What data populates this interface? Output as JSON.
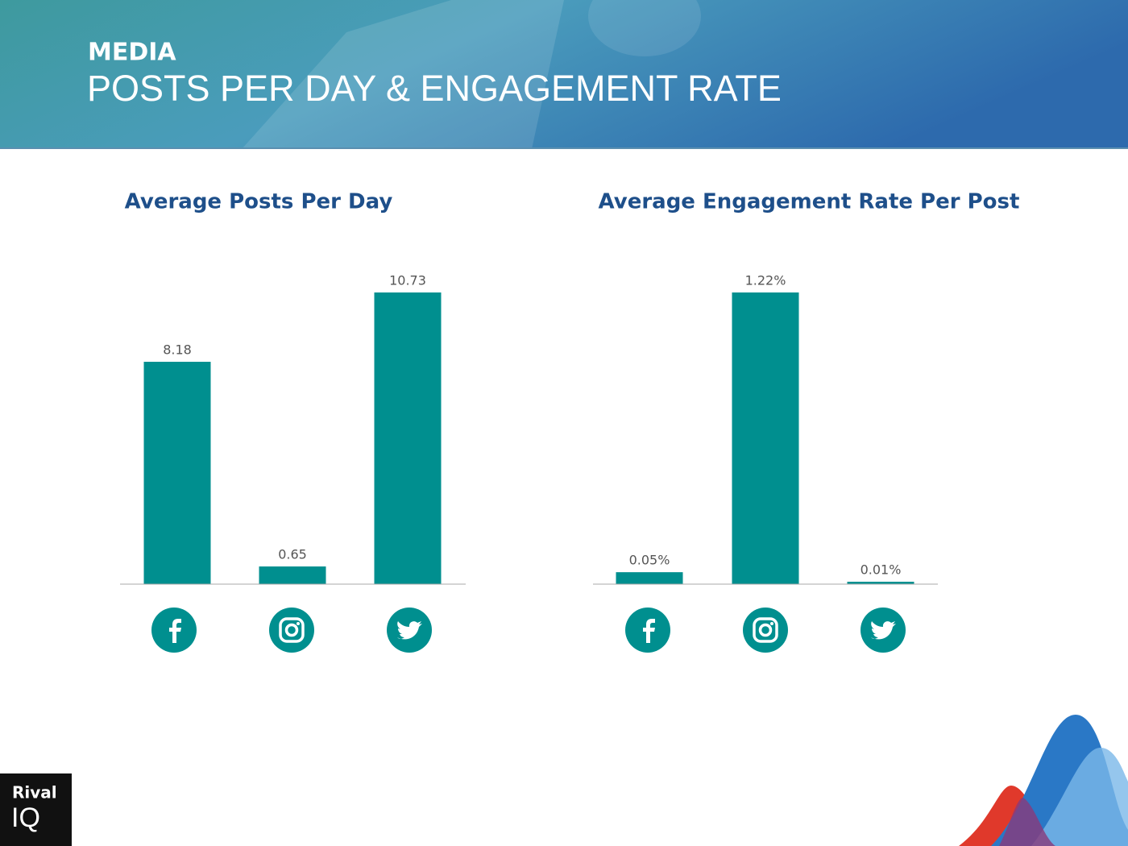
{
  "header": {
    "section": "MEDIA",
    "title": "POSTS PER DAY & ENGAGEMENT RATE"
  },
  "logo": {
    "top": "Rival",
    "bottom": "IQ"
  },
  "chart_data": [
    {
      "type": "bar",
      "title": "Average Posts Per Day",
      "categories": [
        null,
        null,
        null
      ],
      "values": [
        8.18,
        0.65,
        10.73
      ],
      "color": "#008f8f"
    },
    {
      "type": "bar",
      "title": "Average Engagement Rate Per Post",
      "categories": [
        null,
        null,
        null
      ],
      "values": [
        0.05,
        1.22,
        0.01
      ],
      "value_labels": [
        "0.05%",
        "1.22%",
        "0.01%"
      ],
      "color": "#008f8f"
    }
  ]
}
